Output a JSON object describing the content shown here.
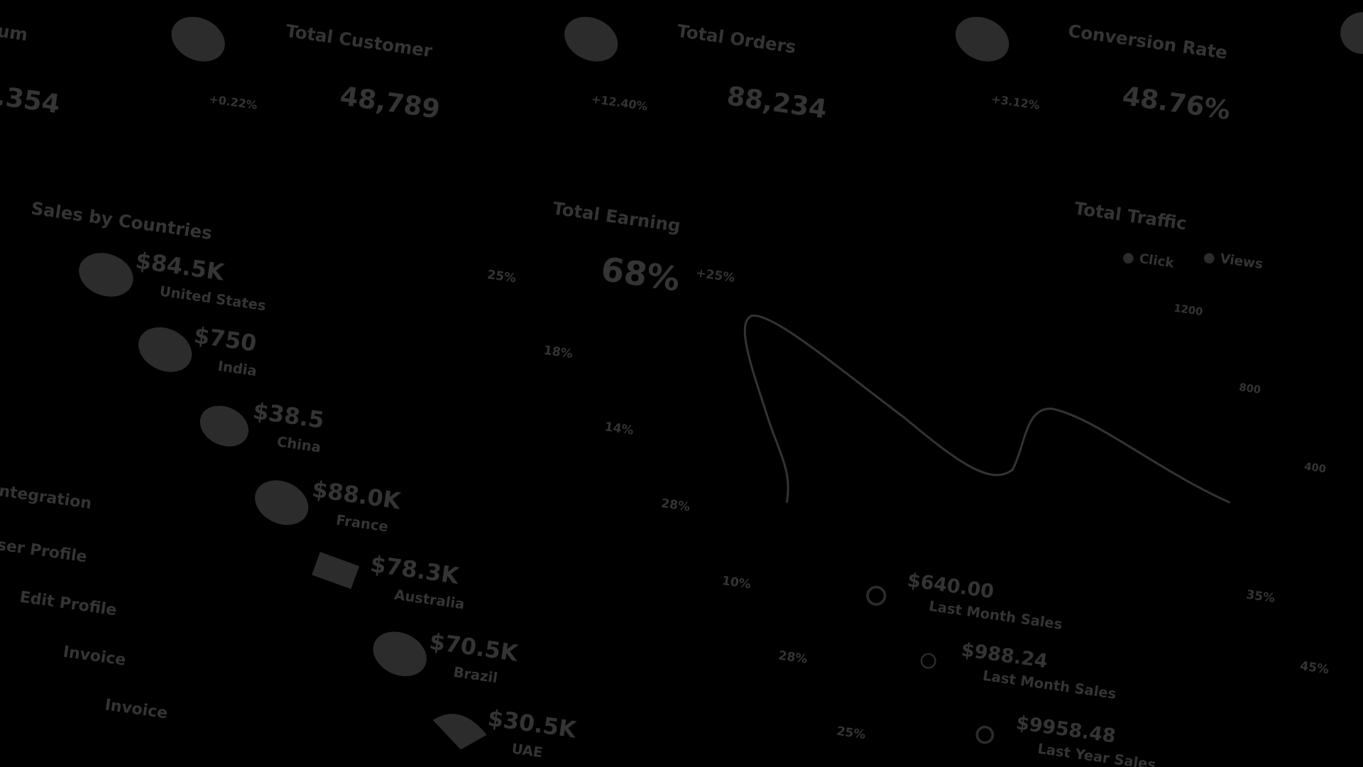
{
  "stat_cards": [
    {
      "title": "um",
      "value": ".354"
    },
    {
      "title": "Total Customer",
      "change": "+0.22%",
      "value": "48,789"
    },
    {
      "title": "Total Orders",
      "change": "+12.40%",
      "value": "88,234"
    },
    {
      "title": "Conversion Rate",
      "change": "+3.12%",
      "value": "48.76%"
    }
  ],
  "menu": [
    "ntegration",
    "ser Profile",
    "Edit Profile",
    "Invoice",
    "Invoice"
  ],
  "sales_by_countries": {
    "title": "Sales by Countries",
    "items": [
      {
        "value": "$84.5K",
        "country": "United States"
      },
      {
        "value": "$750",
        "country": "India"
      },
      {
        "value": "$38.5",
        "country": "China"
      },
      {
        "value": "$88.0K",
        "country": "France"
      },
      {
        "value": "$78.3K",
        "country": "Australia"
      },
      {
        "value": "$70.5K",
        "country": "Brazil"
      },
      {
        "value": "$30.5K",
        "country": "UAE"
      }
    ]
  },
  "total_earning": {
    "title": "Total Earning",
    "value": "68%",
    "change": "+25%",
    "labels": [
      "25%",
      "18%",
      "14%",
      "28%",
      "10%",
      "28%",
      "25%"
    ]
  },
  "total_traffic": {
    "title": "Total Traffic",
    "legend": [
      "Click",
      "Views"
    ],
    "ticks": [
      "1200",
      "800",
      "400"
    ],
    "labels": [
      "35%",
      "45%"
    ]
  },
  "sales_summary": [
    {
      "value": "$640.00",
      "label": "Last Month Sales"
    },
    {
      "value": "$988.24",
      "label": "Last Month Sales"
    },
    {
      "value": "$9958.48",
      "label": "Last Year Sales"
    }
  ]
}
